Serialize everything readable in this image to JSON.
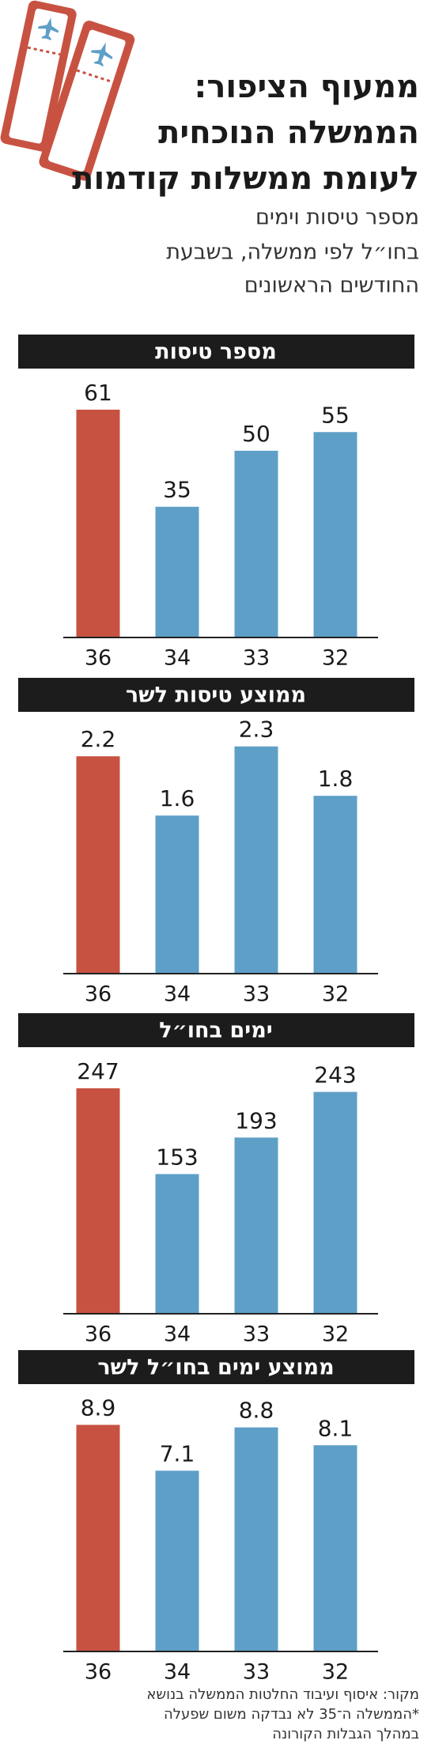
{
  "header": {
    "title": [
      "ממעוף הציפור:",
      "הממשלה הנוכחית",
      "לעומת ממשלות קודמות"
    ],
    "subtitle": [
      "מספר טיסות וימים",
      "בחו״ל לפי ממשלה, בשבעת",
      "החודשים הראשונים"
    ]
  },
  "chart_data": [
    {
      "type": "bar",
      "title": "מספר טיסות",
      "categories": [
        "36",
        "34",
        "33",
        "32"
      ],
      "values": [
        61,
        35,
        50,
        55
      ],
      "colors": [
        "#c85242",
        "#5e9fc8",
        "#5e9fc8",
        "#5e9fc8"
      ],
      "ylim": [
        0,
        72
      ]
    },
    {
      "type": "bar",
      "title": "ממוצע טיסות לשר",
      "categories": [
        "36",
        "34",
        "33",
        "32"
      ],
      "values": [
        2.2,
        1.6,
        2.3,
        1.8
      ],
      "colors": [
        "#c85242",
        "#5e9fc8",
        "#5e9fc8",
        "#5e9fc8"
      ],
      "ylim": [
        0,
        2.65
      ]
    },
    {
      "type": "bar",
      "title": "ימים בחו״ל",
      "categories": [
        "36",
        "34",
        "33",
        "32"
      ],
      "values": [
        247,
        153,
        193,
        243
      ],
      "colors": [
        "#c85242",
        "#5e9fc8",
        "#5e9fc8",
        "#5e9fc8"
      ],
      "ylim": [
        0,
        292
      ]
    },
    {
      "type": "bar",
      "title": "ממוצע ימים בחו״ל לשר",
      "categories": [
        "36",
        "34",
        "33",
        "32"
      ],
      "values": [
        8.9,
        7.1,
        8.8,
        8.1
      ],
      "colors": [
        "#c85242",
        "#5e9fc8",
        "#5e9fc8",
        "#5e9fc8"
      ],
      "ylim": [
        0,
        10.5
      ]
    }
  ],
  "footer": {
    "notes": [
      "מקור: איסוף ועיבוד החלטות הממשלה בנושא",
      "*הממשלה ה־35 לא נבדקה משום שפעלה",
      "במהלך הגבלות הקורונה"
    ]
  }
}
